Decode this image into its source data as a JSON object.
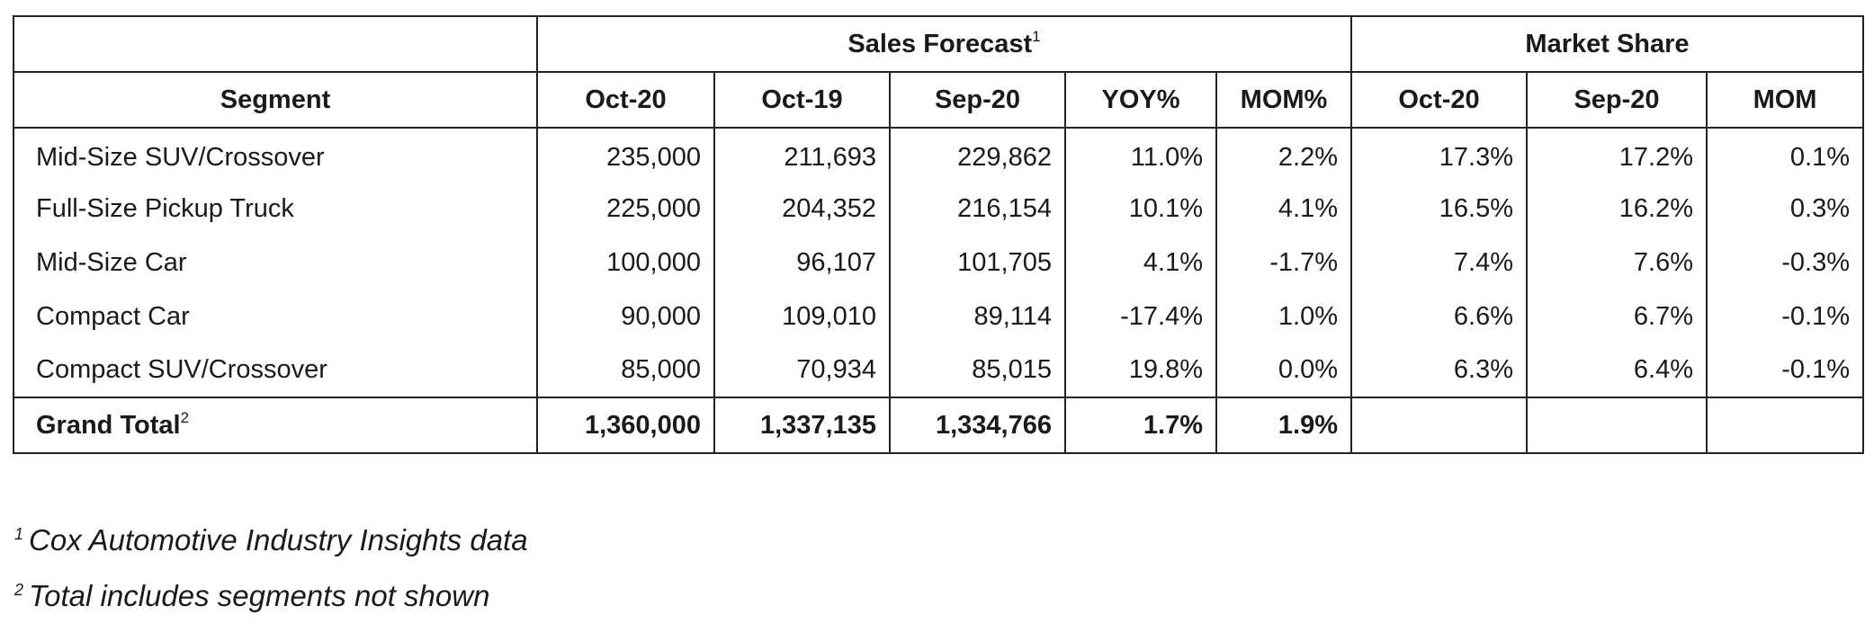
{
  "groups": {
    "sales_forecast": "Sales Forecast",
    "sales_forecast_sup": "1",
    "market_share": "Market Share"
  },
  "headers": {
    "segment": "Segment",
    "sf_oct20": "Oct-20",
    "sf_oct19": "Oct-19",
    "sf_sep20": "Sep-20",
    "yoy": "YOY%",
    "mom_pct": "MOM%",
    "ms_oct20": "Oct-20",
    "ms_sep20": "Sep-20",
    "ms_mom": "MOM"
  },
  "rows": [
    {
      "segment": "Mid-Size SUV/Crossover",
      "oct20": "235,000",
      "oct19": "211,693",
      "sep20": "229,862",
      "yoy": "11.0%",
      "mom": "2.2%",
      "ms_oct20": "17.3%",
      "ms_sep20": "17.2%",
      "ms_mom": "0.1%"
    },
    {
      "segment": "Full-Size Pickup Truck",
      "oct20": "225,000",
      "oct19": "204,352",
      "sep20": "216,154",
      "yoy": "10.1%",
      "mom": "4.1%",
      "ms_oct20": "16.5%",
      "ms_sep20": "16.2%",
      "ms_mom": "0.3%"
    },
    {
      "segment": "Mid-Size Car",
      "oct20": "100,000",
      "oct19": "96,107",
      "sep20": "101,705",
      "yoy": "4.1%",
      "mom": "-1.7%",
      "ms_oct20": "7.4%",
      "ms_sep20": "7.6%",
      "ms_mom": "-0.3%"
    },
    {
      "segment": "Compact Car",
      "oct20": "90,000",
      "oct19": "109,010",
      "sep20": "89,114",
      "yoy": "-17.4%",
      "mom": "1.0%",
      "ms_oct20": "6.6%",
      "ms_sep20": "6.7%",
      "ms_mom": "-0.1%"
    },
    {
      "segment": "Compact SUV/Crossover",
      "oct20": "85,000",
      "oct19": "70,934",
      "sep20": "85,015",
      "yoy": "19.8%",
      "mom": "0.0%",
      "ms_oct20": "6.3%",
      "ms_sep20": "6.4%",
      "ms_mom": "-0.1%"
    }
  ],
  "total": {
    "label": "Grand Total",
    "label_sup": "2",
    "oct20": "1,360,000",
    "oct19": "1,337,135",
    "sep20": "1,334,766",
    "yoy": "1.7%",
    "mom": "1.9%"
  },
  "footnotes": [
    {
      "marker": "1",
      "text": "Cox Automotive Industry Insights data"
    },
    {
      "marker": "2",
      "text": "Total includes segments not shown"
    }
  ]
}
